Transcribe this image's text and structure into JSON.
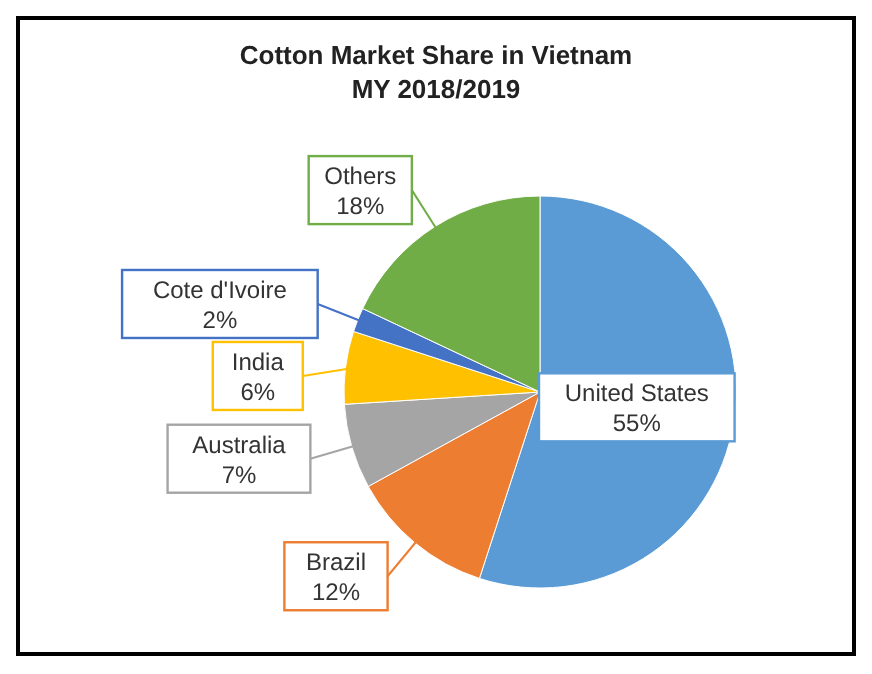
{
  "chart_data": {
    "type": "pie",
    "title": "Cotton Market Share in Vietnam",
    "subtitle": "MY 2018/2019",
    "categories": [
      "United States",
      "Brazil",
      "Australia",
      "India",
      "Cote d'Ivoire",
      "Others"
    ],
    "values": [
      55,
      12,
      7,
      6,
      2,
      18
    ],
    "colors": [
      "#5b9bd5",
      "#ed7d31",
      "#a5a5a5",
      "#ffc000",
      "#4472c4",
      "#70ad47"
    ],
    "value_labels": [
      "55%",
      "12%",
      "7%",
      "6%",
      "2%",
      "18%"
    ],
    "legend": false
  }
}
